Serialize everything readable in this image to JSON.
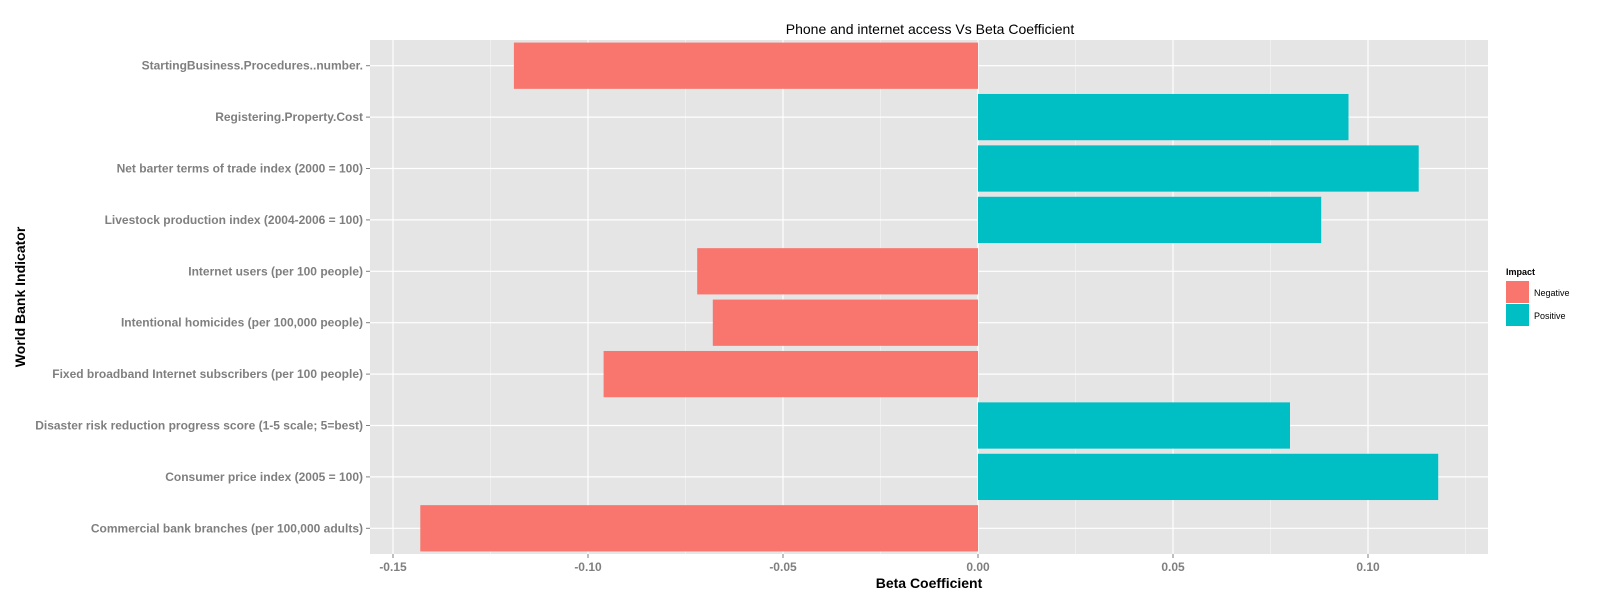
{
  "chart_data": {
    "type": "bar",
    "orientation": "horizontal",
    "title": "Phone and internet access Vs Beta Coefficient",
    "xlabel": "Beta Coefficient",
    "ylabel": "World Bank Indicator",
    "xlim": [
      -0.15,
      0.12
    ],
    "xticks": [
      -0.15,
      -0.1,
      -0.05,
      0.0,
      0.05,
      0.1
    ],
    "xtick_labels": [
      "-0.15",
      "-0.10",
      "-0.05",
      "0.00",
      "0.05",
      "0.10"
    ],
    "grid": true,
    "legend_position": "right",
    "legend": {
      "title": "Impact",
      "entries": [
        {
          "name": "Negative",
          "color": "#F8766D"
        },
        {
          "name": "Positive",
          "color": "#00BFC4"
        }
      ]
    },
    "categories": [
      "StartingBusiness.Procedures..number.",
      "Registering.Property.Cost",
      "Net barter terms of trade index (2000 = 100)",
      "Livestock production index (2004-2006 = 100)",
      "Internet users (per 100 people)",
      "Intentional homicides (per 100,000 people)",
      "Fixed broadband Internet subscribers (per 100 people)",
      "Disaster risk reduction progress score (1-5 scale; 5=best)",
      "Consumer price index (2005 = 100)",
      "Commercial bank branches (per 100,000 adults)"
    ],
    "values": [
      -0.119,
      0.095,
      0.113,
      0.088,
      -0.072,
      -0.068,
      -0.096,
      0.08,
      0.118,
      -0.143
    ],
    "impact": [
      "Negative",
      "Positive",
      "Positive",
      "Positive",
      "Negative",
      "Negative",
      "Negative",
      "Positive",
      "Positive",
      "Negative"
    ]
  }
}
